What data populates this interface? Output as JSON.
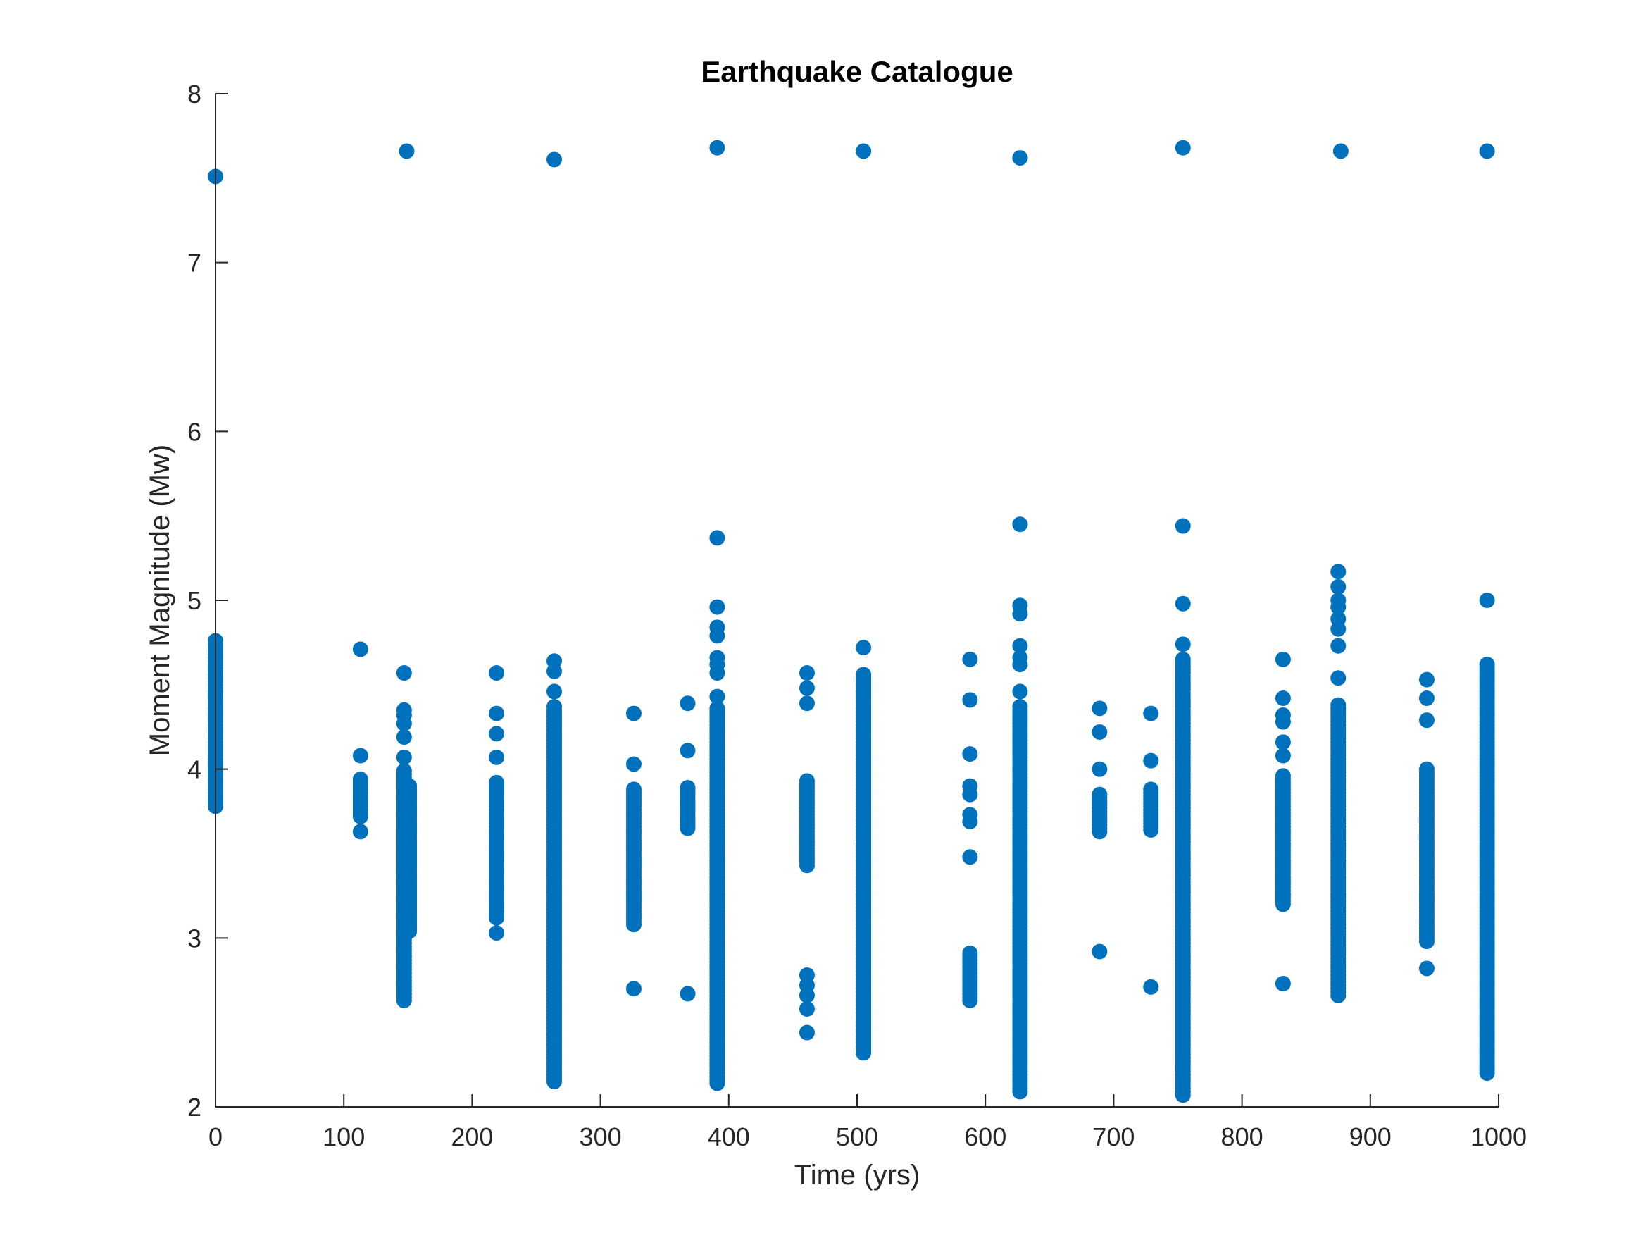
{
  "chart_data": {
    "type": "scatter",
    "title": "Earthquake Catalogue",
    "xlabel": "Time (yrs)",
    "ylabel": "Moment Magnitude (Mw)",
    "xlim": [
      0,
      1000
    ],
    "ylim": [
      2,
      8
    ],
    "xticks": [
      0,
      100,
      200,
      300,
      400,
      500,
      600,
      700,
      800,
      900,
      1000
    ],
    "yticks": [
      2,
      3,
      4,
      5,
      6,
      7,
      8
    ],
    "grid": false,
    "legend": "none",
    "marker_color": "#0072BD",
    "series": [
      {
        "points": [
          [
            0,
            7.51
          ],
          [
            149,
            7.66
          ],
          [
            264,
            7.61
          ],
          [
            391,
            7.68
          ],
          [
            505,
            7.66
          ],
          [
            627,
            7.62
          ],
          [
            754,
            7.68
          ],
          [
            877,
            7.66
          ],
          [
            991,
            7.66
          ]
        ]
      }
    ],
    "clusters": [
      {
        "x": 0,
        "ymin": 3.78,
        "ymax": 4.77,
        "extra": []
      },
      {
        "x": 113,
        "ymin": 3.72,
        "ymax": 3.95,
        "extra": [
          4.71,
          4.08,
          3.63
        ]
      },
      {
        "x": 147,
        "ymin": 2.63,
        "ymax": 4.0,
        "extra": [
          4.57,
          4.35,
          4.32,
          4.27,
          4.19,
          4.07
        ]
      },
      {
        "x": 151,
        "ymin": 3.04,
        "ymax": 3.9,
        "extra": []
      },
      {
        "x": 219,
        "ymin": 3.12,
        "ymax": 3.93,
        "extra": [
          4.57,
          4.33,
          4.21,
          4.07,
          3.03
        ]
      },
      {
        "x": 264,
        "ymin": 2.15,
        "ymax": 4.37,
        "extra": [
          4.64,
          4.58,
          4.46
        ]
      },
      {
        "x": 326,
        "ymin": 3.08,
        "ymax": 3.88,
        "extra": [
          4.33,
          4.03,
          2.7
        ]
      },
      {
        "x": 368,
        "ymin": 3.65,
        "ymax": 3.89,
        "extra": [
          4.39,
          4.11,
          2.67
        ]
      },
      {
        "x": 391,
        "ymin": 2.14,
        "ymax": 4.37,
        "extra": [
          5.37,
          4.96,
          4.84,
          4.79,
          4.66,
          4.62,
          4.57,
          4.43
        ]
      },
      {
        "x": 461,
        "ymin": 3.43,
        "ymax": 3.94,
        "extra": [
          4.57,
          4.48,
          4.39,
          2.78,
          2.72,
          2.66,
          2.58,
          2.44
        ]
      },
      {
        "x": 505,
        "ymin": 2.32,
        "ymax": 4.57,
        "extra": [
          4.72
        ]
      },
      {
        "x": 588,
        "ymin": 2.63,
        "ymax": 2.92,
        "extra": [
          4.65,
          4.41,
          4.09,
          3.9,
          3.85,
          3.73,
          3.69,
          3.48
        ]
      },
      {
        "x": 627,
        "ymin": 2.09,
        "ymax": 4.37,
        "extra": [
          5.45,
          4.97,
          4.92,
          4.73,
          4.66,
          4.62,
          4.46
        ]
      },
      {
        "x": 689,
        "ymin": 3.63,
        "ymax": 3.86,
        "extra": [
          4.36,
          4.22,
          4.0,
          2.92
        ]
      },
      {
        "x": 729,
        "ymin": 3.64,
        "ymax": 3.88,
        "extra": [
          4.33,
          4.05,
          2.71
        ]
      },
      {
        "x": 754,
        "ymin": 2.07,
        "ymax": 4.65,
        "extra": [
          5.44,
          4.98,
          4.74
        ]
      },
      {
        "x": 832,
        "ymin": 3.2,
        "ymax": 3.97,
        "extra": [
          4.65,
          4.42,
          4.32,
          4.28,
          4.16,
          4.08,
          2.73
        ]
      },
      {
        "x": 875,
        "ymin": 2.66,
        "ymax": 4.38,
        "extra": [
          5.17,
          5.08,
          5.0,
          4.96,
          4.89,
          4.83,
          4.73,
          4.54
        ]
      },
      {
        "x": 944,
        "ymin": 2.98,
        "ymax": 4.01,
        "extra": [
          4.53,
          4.42,
          4.29,
          2.82
        ]
      },
      {
        "x": 991,
        "ymin": 2.2,
        "ymax": 4.62,
        "extra": [
          5.0
        ]
      }
    ]
  }
}
